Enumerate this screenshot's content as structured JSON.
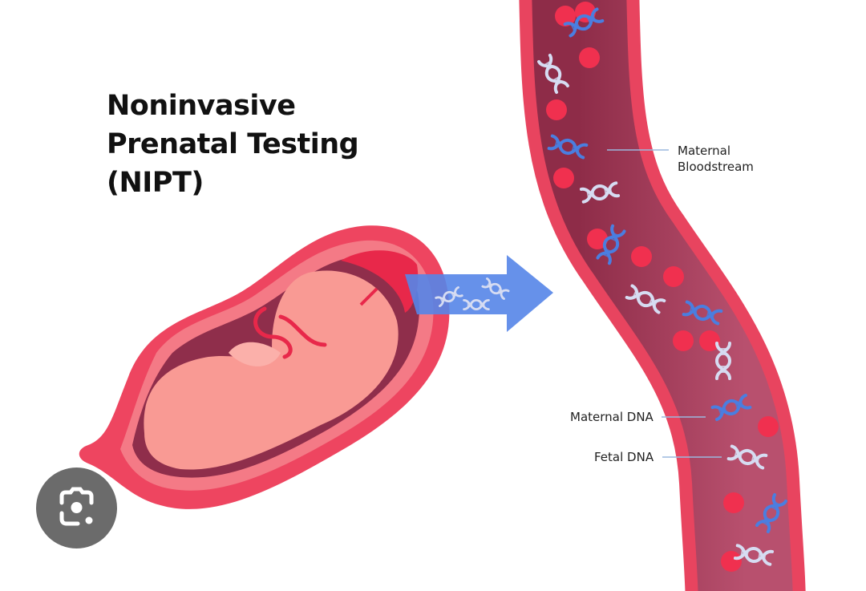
{
  "title": {
    "line1": "Noninvasive",
    "line2": "Prenatal Testing",
    "line3": "(NIPT)"
  },
  "labels": {
    "bloodstream_line1": "Maternal",
    "bloodstream_line2": "Bloodstream",
    "maternal_dna": "Maternal DNA",
    "fetal_dna": "Fetal DNA"
  },
  "lens_button": {
    "icon": "google-lens-icon"
  },
  "colors": {
    "vessel_wall": "#e8445f",
    "vessel_inner": "#9e3552",
    "blood_cell": "#f0304f",
    "maternal_dna": "#4a7ee0",
    "fetal_dna": "#d6dcf2",
    "arrow": "#5585e8",
    "uterus": "#ee4560",
    "fetus": "#f99a94",
    "label_line": "#9bb8de"
  }
}
